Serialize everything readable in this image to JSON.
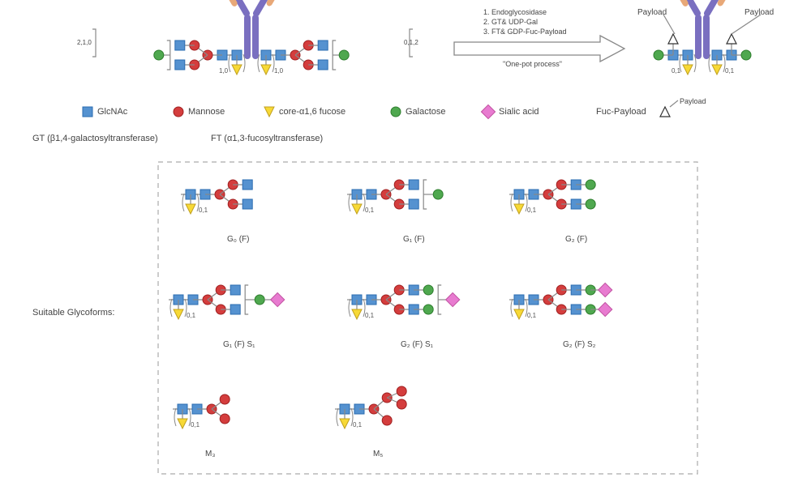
{
  "colors": {
    "glcnac": "#5592d0",
    "glcnac_stroke": "#2b6cb0",
    "mannose": "#d43d3d",
    "mannose_stroke": "#a02020",
    "fucose": "#f7d936",
    "fucose_stroke": "#c0a020",
    "galactose": "#4fa84f",
    "galactose_stroke": "#2d7d2d",
    "sialic": "#e87bd0",
    "sialic_stroke": "#c050a0",
    "antibody_heavy": "#7a6fc0",
    "antibody_light": "#e8a878",
    "arrow_fill": "#ffffff",
    "arrow_stroke": "#888888",
    "line": "#888888",
    "dash": "#aaaaaa",
    "text": "#555555"
  },
  "legend": {
    "glcnac": "GlcNAc",
    "mannose": "Mannose",
    "fucose": "core-α1,6 fucose",
    "galactose": "Galactose",
    "sialic": "Sialic acid",
    "fucpayload": "Fuc-Payload",
    "payload_label": "Payload"
  },
  "enzymes": {
    "gt": "GT (β1,4-galactosyltransferase)",
    "ft": "FT (α1,3-fucosyltransferase)"
  },
  "glycoform_section_label": "Suitable Glycoforms:",
  "process_steps": {
    "s1": "1. Endoglycosidase",
    "s2": "2. GT& UDP-Gal",
    "s3": "3. FT& GDP-Fuc-Payload"
  },
  "process_caption": "\"One-pot process\"",
  "glycoform_labels": {
    "g0f": "G₀ (F)",
    "g1f": "G₁ (F)",
    "g2f": "G₂ (F)",
    "g1fs1": "G₁ (F) S₁",
    "g2fs1": "G₂ (F) S₁",
    "g2fs2": "G₂ (F) S₂",
    "m3": "M₃",
    "m5": "M₅"
  },
  "stoich_labels": {
    "left_end": "2,1,0",
    "right_end": "0,1,2",
    "core": "0,1",
    "core10": "1,0"
  },
  "payload_text": "Payload",
  "sizes": {
    "square": 12,
    "circle_r": 6,
    "triangle": 12,
    "diamond": 12
  }
}
